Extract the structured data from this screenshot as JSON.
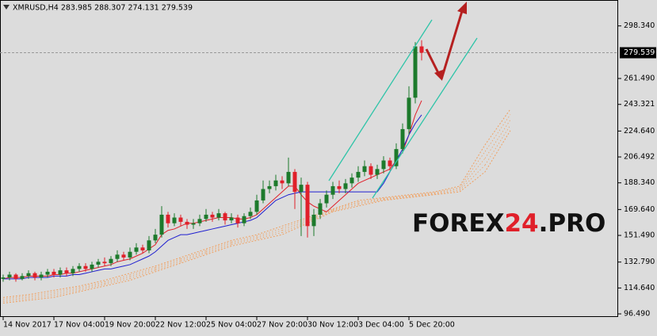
{
  "chart_data": {
    "type": "candlestick",
    "title": "XMRUSD,H4  283.985 288.307 274.131 279.539",
    "xlim": [
      -0.5,
      97
    ],
    "ylim": [
      94.3,
      316.5
    ],
    "yticks": [
      {
        "value": 298.34,
        "label": "298.340"
      },
      {
        "value": 261.49,
        "label": "261.490"
      },
      {
        "value": 243.321,
        "label": "243.321"
      },
      {
        "value": 224.64,
        "label": "224.640"
      },
      {
        "value": 206.492,
        "label": "206.492"
      },
      {
        "value": 188.34,
        "label": "188.340"
      },
      {
        "value": 169.64,
        "label": "169.640"
      },
      {
        "value": 151.49,
        "label": "151.490"
      },
      {
        "value": 132.79,
        "label": "132.790"
      },
      {
        "value": 114.64,
        "label": "114.640"
      },
      {
        "value": 96.49,
        "label": "96.490"
      }
    ],
    "xticks": [
      {
        "value": 0,
        "label": "14 Nov 2017"
      },
      {
        "value": 8,
        "label": "17 Nov 04:00"
      },
      {
        "value": 16,
        "label": "19 Nov 20:00"
      },
      {
        "value": 24,
        "label": "22 Nov 12:00"
      },
      {
        "value": 32,
        "label": "25 Nov 04:00"
      },
      {
        "value": 40,
        "label": "27 Nov 20:00"
      },
      {
        "value": 48,
        "label": "30 Nov 12:00"
      },
      {
        "value": 56,
        "label": "3 Dec 04:00"
      },
      {
        "value": 64,
        "label": "5 Dec 20:00"
      }
    ],
    "last_price": 279.539,
    "up_color": "#1d7a2c",
    "down_color": "#e0202a",
    "open": [
      121,
      122,
      124,
      121,
      123,
      125,
      122,
      124,
      126,
      124,
      127,
      125,
      128,
      130,
      128,
      131,
      133,
      132,
      135,
      138,
      136,
      140,
      143,
      141,
      148,
      152,
      166,
      160,
      164,
      161,
      159,
      160,
      163,
      166,
      164,
      167,
      162,
      164,
      160,
      165,
      168,
      176,
      184,
      186,
      190,
      188,
      196,
      182,
      187,
      158,
      166,
      174,
      180,
      186,
      184,
      188,
      192,
      196,
      200,
      194,
      198,
      204,
      200,
      212,
      226,
      248,
      283.985
    ],
    "high": [
      124,
      126,
      125,
      125,
      127,
      126,
      126,
      128,
      128,
      129,
      129,
      130,
      132,
      132,
      133,
      135,
      136,
      137,
      141,
      140,
      143,
      146,
      145,
      151,
      156,
      172,
      168,
      167,
      166,
      163,
      163,
      166,
      170,
      168,
      170,
      168,
      167,
      166,
      167,
      171,
      180,
      190,
      190,
      194,
      193,
      206,
      198,
      192,
      189,
      170,
      177,
      183,
      189,
      190,
      191,
      195,
      200,
      204,
      202,
      201,
      207,
      206,
      216,
      230,
      256,
      287,
      288.307
    ],
    "low": [
      119,
      120,
      119,
      120,
      121,
      120,
      120,
      122,
      122,
      122,
      123,
      123,
      126,
      126,
      126,
      129,
      130,
      130,
      133,
      134,
      134,
      138,
      139,
      139,
      146,
      150,
      157,
      158,
      158,
      156,
      156,
      158,
      161,
      161,
      162,
      159,
      160,
      157,
      158,
      163,
      166,
      174,
      181,
      183,
      184,
      186,
      170,
      151,
      150,
      151,
      163,
      171,
      177,
      181,
      181,
      185,
      189,
      193,
      191,
      191,
      195,
      197,
      198,
      209,
      222,
      244,
      274.131
    ],
    "close": [
      122,
      124,
      121,
      123,
      125,
      122,
      124,
      126,
      124,
      127,
      125,
      128,
      130,
      128,
      131,
      133,
      132,
      135,
      138,
      136,
      140,
      143,
      141,
      148,
      152,
      166,
      160,
      164,
      161,
      159,
      160,
      163,
      166,
      164,
      167,
      162,
      164,
      160,
      165,
      168,
      176,
      184,
      186,
      190,
      188,
      196,
      182,
      187,
      158,
      166,
      174,
      180,
      186,
      184,
      188,
      192,
      196,
      200,
      194,
      198,
      204,
      200,
      212,
      226,
      248,
      283.985,
      279.539
    ],
    "series": [
      {
        "color": "#e0202a",
        "values": [
          121,
          122,
          122,
          122,
          123,
          123,
          123,
          123,
          124,
          124,
          125,
          125,
          126,
          127,
          128,
          129,
          130,
          131,
          133,
          134,
          135,
          137,
          139,
          142,
          145,
          152,
          155,
          156,
          158,
          160,
          160,
          161,
          162,
          163,
          164,
          164,
          164,
          163,
          163,
          164,
          166,
          170,
          174,
          178,
          182,
          186,
          186,
          180,
          175,
          172,
          170,
          168,
          172,
          176,
          180,
          184,
          188,
          190,
          192,
          194,
          196,
          198,
          204,
          210,
          222,
          236,
          246
        ]
      },
      {
        "color": "#1f1fd0",
        "values": [
          121,
          121,
          121,
          121,
          122,
          122,
          122,
          122,
          123,
          123,
          123,
          124,
          124,
          125,
          126,
          127,
          128,
          128,
          129,
          130,
          131,
          133,
          135,
          137,
          140,
          144,
          148,
          150,
          152,
          152,
          153,
          154,
          155,
          156,
          157,
          158,
          159,
          160,
          161,
          162,
          164,
          168,
          172,
          176,
          178,
          180,
          181,
          182,
          182,
          182,
          182,
          182,
          182,
          182,
          182,
          182,
          182,
          182,
          182,
          182,
          188,
          196,
          204,
          212,
          222,
          230,
          236
        ]
      }
    ],
    "cloud": {
      "color": "#f0a060",
      "x": [
        0,
        4,
        8,
        12,
        16,
        20,
        24,
        28,
        32,
        36,
        40,
        44,
        48,
        52,
        56,
        60,
        64,
        68,
        72,
        76,
        80
      ],
      "span_a": [
        108,
        110,
        113,
        116,
        120,
        125,
        130,
        136,
        142,
        148,
        152,
        158,
        164,
        170,
        176,
        178,
        180,
        182,
        186,
        215,
        240
      ],
      "span_b": [
        104,
        106,
        108,
        112,
        116,
        120,
        126,
        132,
        138,
        144,
        148,
        152,
        160,
        168,
        172,
        176,
        178,
        180,
        182,
        196,
        225
      ]
    },
    "watermark": [
      "FOREX",
      "24",
      ".PRO"
    ]
  }
}
